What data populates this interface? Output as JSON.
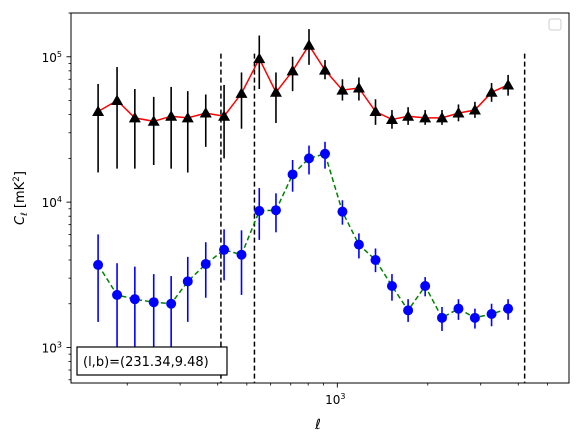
{
  "chart_data": {
    "type": "scatter",
    "xlabel": "ℓ",
    "ylabel_main": "C",
    "ylabel_sub": "ℓ",
    "ylabel_unit": "[mK",
    "ylabel_unit_sup": "2",
    "ylabel_unit_end": "]",
    "x_scale": "log",
    "y_scale": "log",
    "xlim": [
      130,
      5900
    ],
    "ylim": [
      570,
      200000
    ],
    "x_ticks": [
      {
        "value": 1000,
        "base": "10",
        "exp": "3"
      }
    ],
    "y_ticks": [
      {
        "value": 1000,
        "base": "10",
        "exp": "3"
      },
      {
        "value": 10000,
        "base": "10",
        "exp": "4"
      },
      {
        "value": 100000,
        "base": "10",
        "exp": "5"
      }
    ],
    "vlines": [
      410,
      530,
      4200
    ],
    "annotation": "(l,b)=(231.34,9.48)",
    "legend": {
      "position": "upper right",
      "entries": []
    },
    "series": [
      {
        "line_color": "#ff0000",
        "marker_color": "#000000",
        "marker": "triangle",
        "line_style": "solid",
        "points": [
          {
            "x": 160,
            "y": 42000,
            "lo": 16000,
            "hi": 65000
          },
          {
            "x": 185,
            "y": 50000,
            "lo": 17000,
            "hi": 85000
          },
          {
            "x": 212,
            "y": 38000,
            "lo": 17000,
            "hi": 60000
          },
          {
            "x": 245,
            "y": 36000,
            "lo": 18000,
            "hi": 53000
          },
          {
            "x": 280,
            "y": 39000,
            "lo": 17000,
            "hi": 62000
          },
          {
            "x": 318,
            "y": 38000,
            "lo": 16000,
            "hi": 58000
          },
          {
            "x": 365,
            "y": 41000,
            "lo": 24000,
            "hi": 55000
          },
          {
            "x": 420,
            "y": 39000,
            "lo": 20000,
            "hi": 64000
          },
          {
            "x": 480,
            "y": 56000,
            "lo": 32000,
            "hi": 78000
          },
          {
            "x": 550,
            "y": 97000,
            "lo": 60000,
            "hi": 140000
          },
          {
            "x": 625,
            "y": 57000,
            "lo": 35000,
            "hi": 78000
          },
          {
            "x": 710,
            "y": 80000,
            "lo": 58000,
            "hi": 100000
          },
          {
            "x": 805,
            "y": 120000,
            "lo": 88000,
            "hi": 155000
          },
          {
            "x": 910,
            "y": 81000,
            "lo": 70000,
            "hi": 95000
          },
          {
            "x": 1040,
            "y": 59000,
            "lo": 50000,
            "hi": 70000
          },
          {
            "x": 1180,
            "y": 61000,
            "lo": 50000,
            "hi": 72000
          },
          {
            "x": 1340,
            "y": 42000,
            "lo": 34000,
            "hi": 51000
          },
          {
            "x": 1520,
            "y": 37000,
            "lo": 32000,
            "hi": 43000
          },
          {
            "x": 1720,
            "y": 39000,
            "lo": 34000,
            "hi": 45000
          },
          {
            "x": 1960,
            "y": 38000,
            "lo": 34000,
            "hi": 43000
          },
          {
            "x": 2230,
            "y": 38000,
            "lo": 34000,
            "hi": 43000
          },
          {
            "x": 2530,
            "y": 41000,
            "lo": 36000,
            "hi": 47000
          },
          {
            "x": 2870,
            "y": 43000,
            "lo": 38000,
            "hi": 49000
          },
          {
            "x": 3260,
            "y": 57000,
            "lo": 49000,
            "hi": 66000
          },
          {
            "x": 3700,
            "y": 64000,
            "lo": 54000,
            "hi": 75000
          }
        ]
      },
      {
        "line_color": "#008000",
        "marker_color": "#0000ff",
        "marker": "circle",
        "line_style": "dashed",
        "points": [
          {
            "x": 160,
            "y": 3700,
            "lo": 1500,
            "hi": 6000
          },
          {
            "x": 185,
            "y": 2300,
            "lo": 800,
            "hi": 3800
          },
          {
            "x": 212,
            "y": 2150,
            "lo": 700,
            "hi": 3600
          },
          {
            "x": 245,
            "y": 2050,
            "lo": 800,
            "hi": 3200
          },
          {
            "x": 280,
            "y": 2000,
            "lo": 900,
            "hi": 3100
          },
          {
            "x": 318,
            "y": 2850,
            "lo": 1500,
            "hi": 4200
          },
          {
            "x": 365,
            "y": 3750,
            "lo": 2200,
            "hi": 5300
          },
          {
            "x": 420,
            "y": 4700,
            "lo": 2900,
            "hi": 6500
          },
          {
            "x": 480,
            "y": 4350,
            "lo": 2300,
            "hi": 6400
          },
          {
            "x": 550,
            "y": 8700,
            "lo": 5500,
            "hi": 12500
          },
          {
            "x": 625,
            "y": 8800,
            "lo": 6200,
            "hi": 11500
          },
          {
            "x": 710,
            "y": 15500,
            "lo": 11800,
            "hi": 19500
          },
          {
            "x": 805,
            "y": 20000,
            "lo": 15500,
            "hi": 24500
          },
          {
            "x": 910,
            "y": 21500,
            "lo": 17000,
            "hi": 26000
          },
          {
            "x": 1040,
            "y": 8600,
            "lo": 7000,
            "hi": 10300
          },
          {
            "x": 1180,
            "y": 5100,
            "lo": 4100,
            "hi": 6100
          },
          {
            "x": 1340,
            "y": 4000,
            "lo": 3300,
            "hi": 4800
          },
          {
            "x": 1520,
            "y": 2650,
            "lo": 2100,
            "hi": 3200
          },
          {
            "x": 1720,
            "y": 1800,
            "lo": 1500,
            "hi": 2150
          },
          {
            "x": 1960,
            "y": 2650,
            "lo": 2250,
            "hi": 3050
          },
          {
            "x": 2230,
            "y": 1600,
            "lo": 1300,
            "hi": 1900
          },
          {
            "x": 2530,
            "y": 1850,
            "lo": 1550,
            "hi": 2150
          },
          {
            "x": 2870,
            "y": 1600,
            "lo": 1350,
            "hi": 1850
          },
          {
            "x": 3260,
            "y": 1700,
            "lo": 1400,
            "hi": 2000
          },
          {
            "x": 3700,
            "y": 1850,
            "lo": 1550,
            "hi": 2150
          }
        ]
      }
    ]
  }
}
